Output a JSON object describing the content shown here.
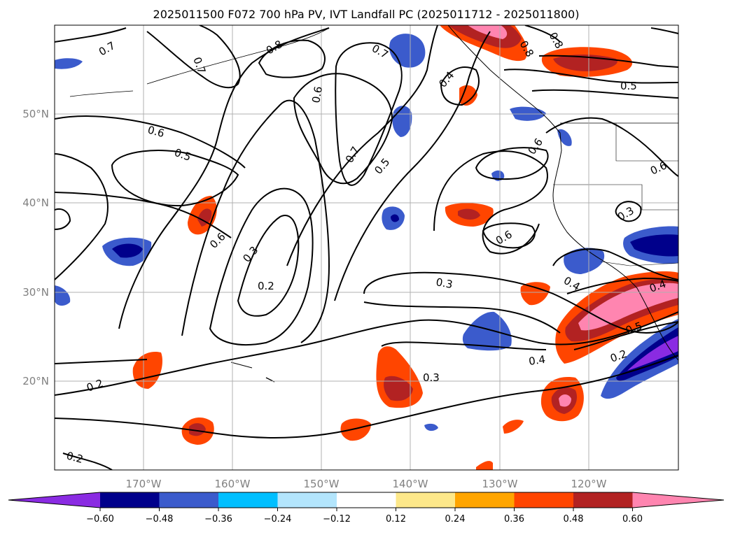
{
  "title": "2025011500 F072 700 hPa PV, IVT Landfall PC (2025011712 - 2025011800)",
  "map": {
    "lon_labels": [
      "170°W",
      "160°W",
      "150°W",
      "140°W",
      "130°W",
      "120°W"
    ],
    "lat_labels": [
      "50°N",
      "40°N",
      "30°N",
      "20°N"
    ],
    "gridlines": true
  },
  "colorbar": {
    "ticks": [
      "−0.60",
      "−0.48",
      "−0.36",
      "−0.24",
      "−0.12",
      "0.12",
      "0.24",
      "0.36",
      "0.48",
      "0.60"
    ],
    "colors": [
      "#8a2be2",
      "#00008b",
      "#3b5bcc",
      "#00bfff",
      "#b3e5fc",
      "#ffffff",
      "#fde88a",
      "#ffa500",
      "#ff4500",
      "#b22222",
      "#ff85b0"
    ],
    "extend": "both"
  },
  "contour_labels": [
    "0.7",
    "0.7",
    "0.8",
    "0.7",
    "0.8",
    "0.8",
    "0.6",
    "0.4",
    "0.5",
    "0.6",
    "0.5",
    "0.7",
    "0.5",
    "0.6",
    "0.6",
    "0.6",
    "0.3",
    "0.6",
    "0.3",
    "0.2",
    "0.3",
    "0.4",
    "0.4",
    "0.5",
    "0.2",
    "0.4",
    "0.3",
    "0.2",
    "0.2"
  ],
  "chart_data": {
    "type": "heatmap",
    "title": "2025011500 F072 700 hPa PV, IVT Landfall PC (2025011712 - 2025011800)",
    "x_ticks": [
      "170°W",
      "160°W",
      "150°W",
      "140°W",
      "130°W",
      "120°W"
    ],
    "y_ticks": [
      "50°N",
      "40°N",
      "30°N",
      "20°N"
    ],
    "xlim": [
      -180,
      -110
    ],
    "ylim": [
      10,
      60
    ],
    "contour_levels": [
      0.2,
      0.3,
      0.4,
      0.5,
      0.6,
      0.7,
      0.8
    ],
    "colorbar_levels": [
      -0.6,
      -0.48,
      -0.36,
      -0.24,
      -0.12,
      0.12,
      0.24,
      0.36,
      0.48,
      0.6
    ]
  }
}
